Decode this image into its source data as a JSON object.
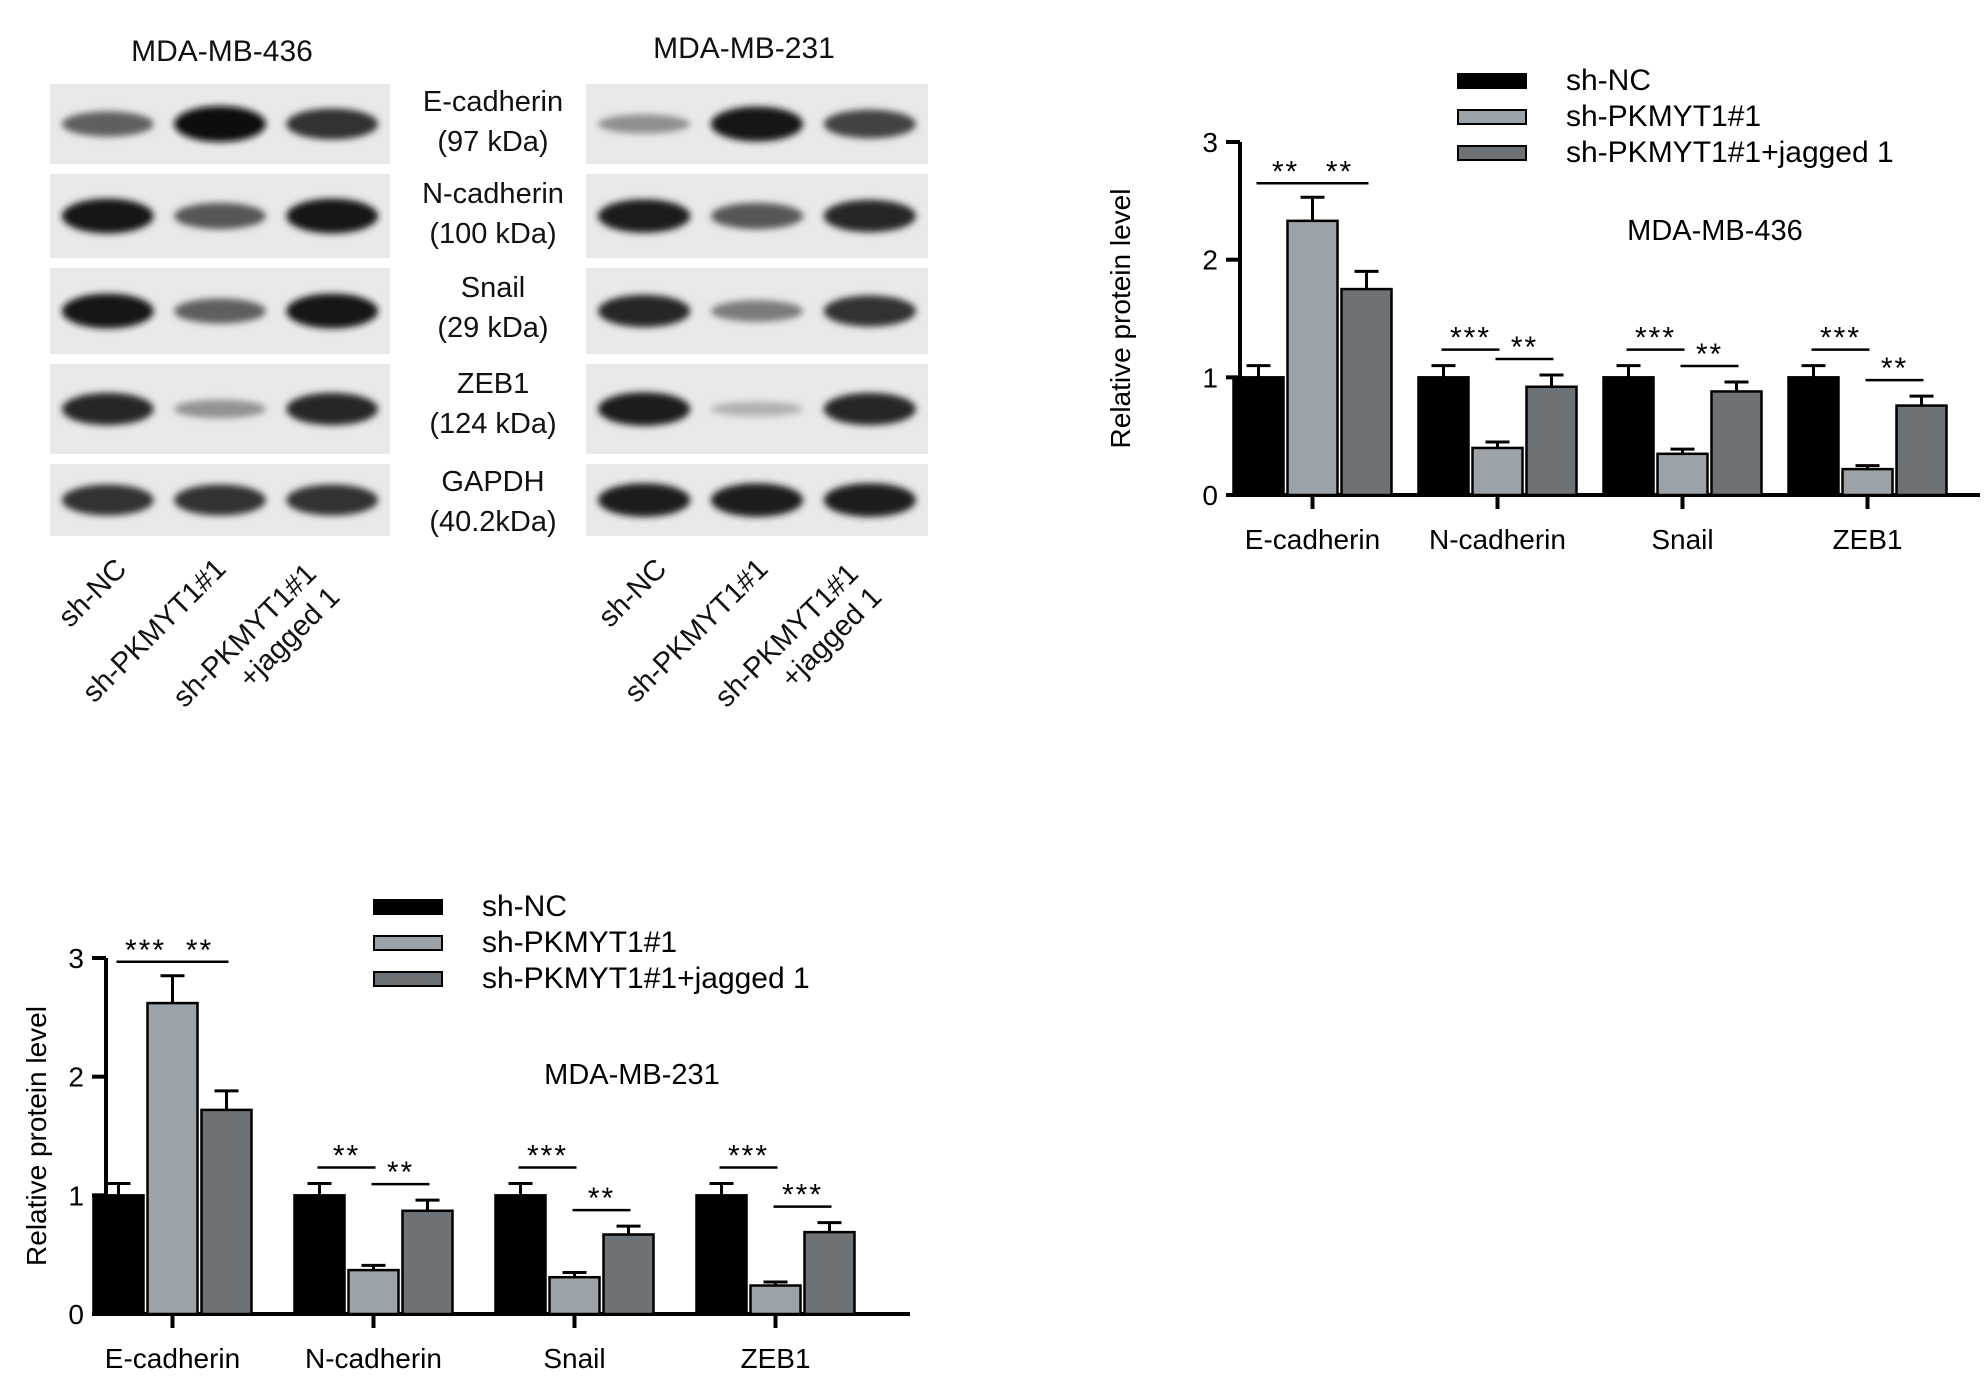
{
  "western_blot": {
    "panels": [
      {
        "cell_line": "MDA-MB-436"
      },
      {
        "cell_line": "MDA-MB-231"
      }
    ],
    "markers": [
      {
        "name": "E-cadherin",
        "mw": "(97 kDa)"
      },
      {
        "name": "N-cadherin",
        "mw": "(100 kDa)"
      },
      {
        "name": "Snail",
        "mw": "(29 kDa)"
      },
      {
        "name": "ZEB1",
        "mw": "(124 kDa)"
      },
      {
        "name": "GAPDH",
        "mw": "(40.2kDa)"
      }
    ],
    "lanes": [
      {
        "line1": "sh-NC",
        "line2": ""
      },
      {
        "line1": "sh-PKMYT1#1",
        "line2": ""
      },
      {
        "line1": "sh-PKMYT1#1",
        "line2": "+jagged 1"
      }
    ],
    "band_intensity": {
      "MDA-MB-436": [
        [
          0.55,
          1.0,
          0.8
        ],
        [
          0.95,
          0.6,
          0.95
        ],
        [
          0.95,
          0.55,
          0.95
        ],
        [
          0.85,
          0.28,
          0.85
        ],
        [
          0.8,
          0.8,
          0.8
        ]
      ],
      "MDA-MB-231": [
        [
          0.3,
          0.95,
          0.7
        ],
        [
          0.9,
          0.6,
          0.85
        ],
        [
          0.85,
          0.4,
          0.8
        ],
        [
          0.9,
          0.12,
          0.85
        ],
        [
          0.9,
          0.9,
          0.9
        ]
      ]
    }
  },
  "chart_data": [
    {
      "type": "bar",
      "title": "MDA-MB-436",
      "ylabel": "Relative protein level",
      "ylim": [
        0,
        3
      ],
      "yticks": [
        "0",
        "1",
        "2",
        "3"
      ],
      "categories": [
        "E-cadherin",
        "N-cadherin",
        "Snail",
        "ZEB1"
      ],
      "series": [
        {
          "name": "sh-NC",
          "values": [
            1.0,
            1.0,
            1.0,
            1.0
          ],
          "errors": [
            0.1,
            0.1,
            0.1,
            0.1
          ],
          "color": "#000000"
        },
        {
          "name": "sh-PKMYT1#1",
          "values": [
            2.33,
            0.4,
            0.35,
            0.22
          ],
          "errors": [
            0.2,
            0.05,
            0.04,
            0.03
          ],
          "color": "#9ba3a8"
        },
        {
          "name": "sh-PKMYT1#1+jagged 1",
          "values": [
            1.75,
            0.92,
            0.88,
            0.76
          ],
          "errors": [
            0.15,
            0.1,
            0.08,
            0.08
          ],
          "color": "#6c7276"
        }
      ],
      "significance": [
        [
          "**",
          "**"
        ],
        [
          "***",
          "**"
        ],
        [
          "***",
          "**"
        ],
        [
          "***",
          "**"
        ]
      ],
      "legend": "top-right"
    },
    {
      "type": "bar",
      "title": "MDA-MB-231",
      "ylabel": "Relative protein level",
      "ylim": [
        0,
        3
      ],
      "yticks": [
        "0",
        "1",
        "2",
        "3"
      ],
      "categories": [
        "E-cadherin",
        "N-cadherin",
        "Snail",
        "ZEB1"
      ],
      "series": [
        {
          "name": "sh-NC",
          "values": [
            1.0,
            1.0,
            1.0,
            1.0
          ],
          "errors": [
            0.1,
            0.1,
            0.1,
            0.1
          ],
          "color": "#000000"
        },
        {
          "name": "sh-PKMYT1#1",
          "values": [
            2.62,
            0.37,
            0.31,
            0.24
          ],
          "errors": [
            0.23,
            0.04,
            0.04,
            0.03
          ],
          "color": "#9ba3a8"
        },
        {
          "name": "sh-PKMYT1#1+jagged 1",
          "values": [
            1.72,
            0.87,
            0.67,
            0.69
          ],
          "errors": [
            0.16,
            0.09,
            0.07,
            0.08
          ],
          "color": "#6c7276"
        }
      ],
      "significance": [
        [
          "***",
          "**"
        ],
        [
          "**",
          "**"
        ],
        [
          "***",
          "**"
        ],
        [
          "***",
          "***"
        ]
      ],
      "legend": "top"
    }
  ]
}
